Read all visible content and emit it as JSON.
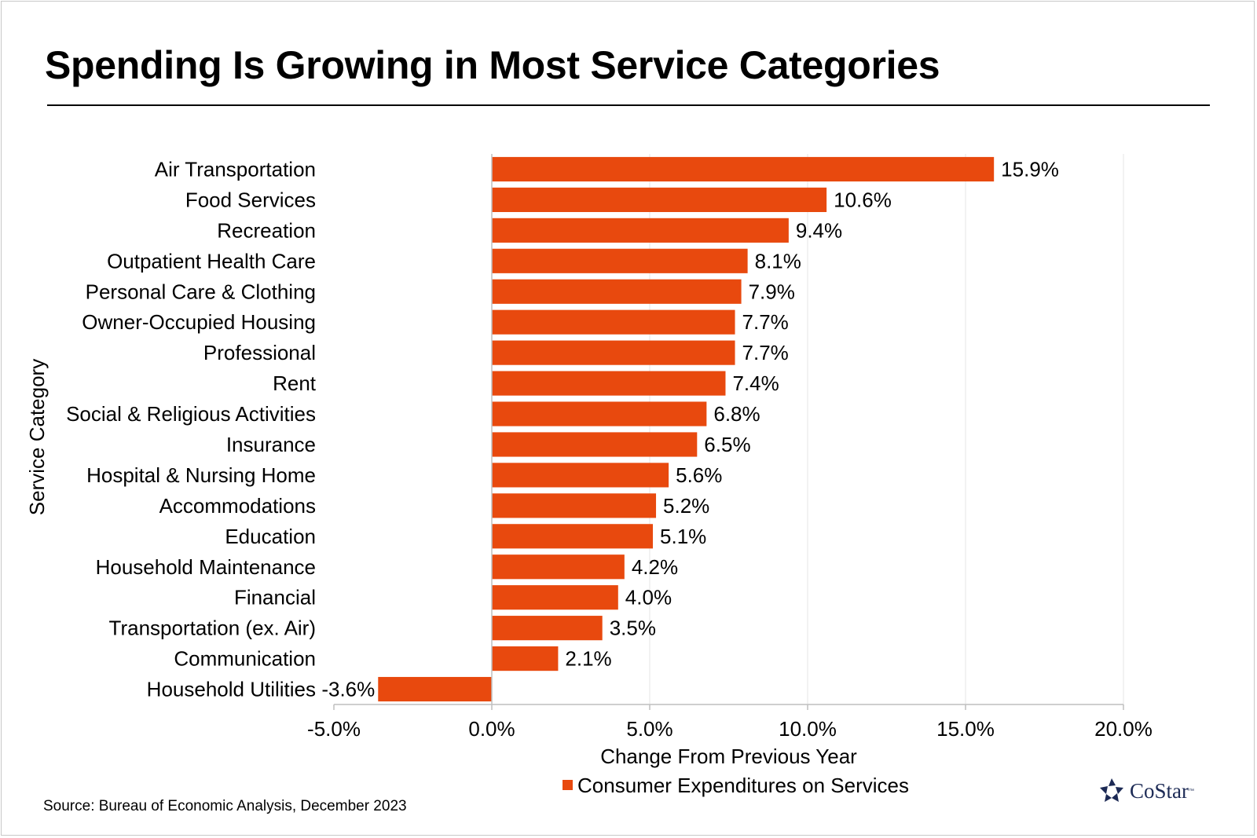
{
  "title": "Spending Is Growing in Most Service Categories",
  "source": "Source: Bureau of Economic Analysis, December 2023",
  "logo": {
    "name": "CoStar",
    "tm": "™"
  },
  "colors": {
    "bar": "#E8490E",
    "grid": "#e6e6e6",
    "axis": "#bfbfbf",
    "logo": "#1c2a55"
  },
  "chart_data": {
    "type": "bar",
    "orientation": "horizontal",
    "categories": [
      "Air Transportation",
      "Food Services",
      "Recreation",
      "Outpatient Health Care",
      "Personal Care & Clothing",
      "Owner-Occupied Housing",
      "Professional",
      "Rent",
      "Social & Religious Activities",
      "Insurance",
      "Hospital & Nursing Home",
      "Accommodations",
      "Education",
      "Household Maintenance",
      "Financial",
      "Transportation (ex. Air)",
      "Communication",
      "Household Utilities"
    ],
    "series": [
      {
        "name": "Consumer Expenditures on Services",
        "values": [
          15.9,
          10.6,
          9.4,
          8.1,
          7.9,
          7.7,
          7.7,
          7.4,
          6.8,
          6.5,
          5.6,
          5.2,
          5.1,
          4.2,
          4.0,
          3.5,
          2.1,
          -3.6
        ],
        "labels": [
          "15.9%",
          "10.6%",
          "9.4%",
          "8.1%",
          "7.9%",
          "7.7%",
          "7.7%",
          "7.4%",
          "6.8%",
          "6.5%",
          "5.6%",
          "5.2%",
          "5.1%",
          "4.2%",
          "4.0%",
          "3.5%",
          "2.1%",
          "-3.6%"
        ]
      }
    ],
    "xlabel": "Change From Previous Year",
    "ylabel": "Service Category",
    "xlim": [
      -5,
      20
    ],
    "xticks": [
      -5,
      0,
      5,
      10,
      15,
      20
    ],
    "xtick_labels": [
      "-5.0%",
      "0.0%",
      "5.0%",
      "10.0%",
      "15.0%",
      "20.0%"
    ],
    "grid": "vertical",
    "legend": "bottom-center"
  }
}
